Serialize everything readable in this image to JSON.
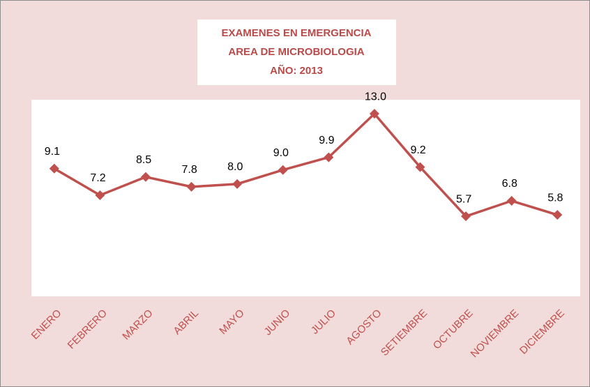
{
  "chart_data": {
    "type": "line",
    "title": [
      "EXAMENES EN EMERGENCIA",
      "AREA DE MICROBIOLOGIA",
      "AÑO: 2013"
    ],
    "categories": [
      "ENERO",
      "FEBRERO",
      "MARZO",
      "ABRIL",
      "MAYO",
      "JUNIO",
      "JULIO",
      "AGOSTO",
      "SETIEMBRE",
      "OCTUBRE",
      "NOVIEMBRE",
      "DICIEMBRE"
    ],
    "values": [
      9.1,
      7.2,
      8.5,
      7.8,
      8.0,
      9.0,
      9.9,
      13.0,
      9.2,
      5.7,
      6.8,
      5.8
    ],
    "value_labels": [
      "9.1",
      "7.2",
      "8.5",
      "7.8",
      "8.0",
      "9.0",
      "9.9",
      "13.0",
      "9.2",
      "5.7",
      "6.8",
      "5.8"
    ],
    "color": "#c0504d",
    "ylim": [
      0,
      14
    ]
  }
}
